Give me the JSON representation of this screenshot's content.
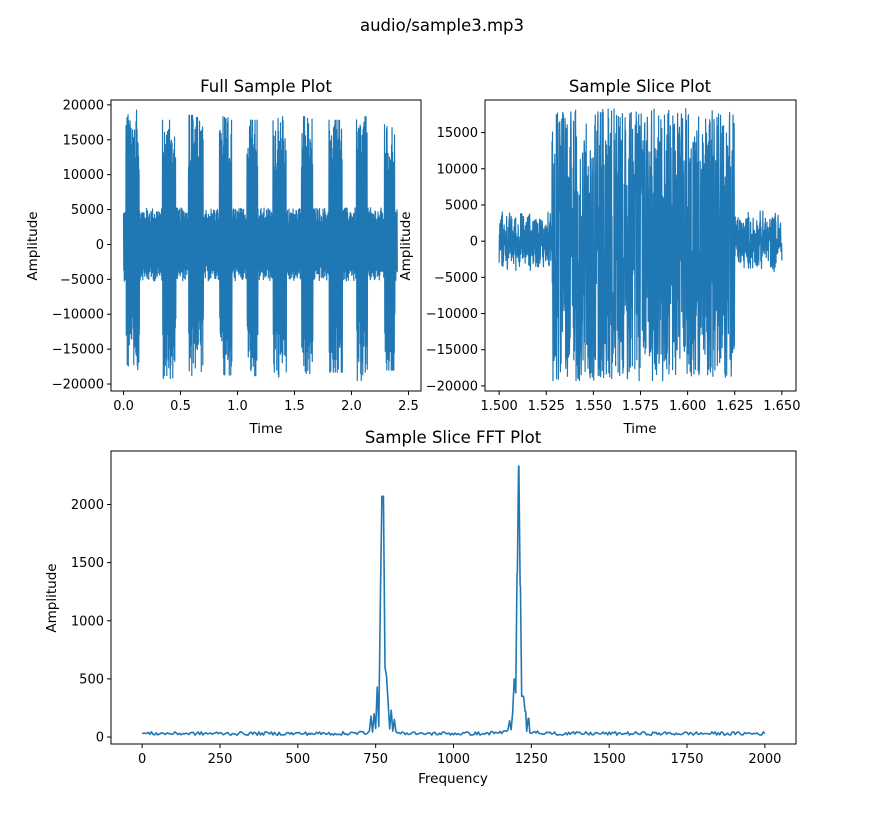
{
  "figure": {
    "suptitle": "audio/sample3.mp3",
    "line_color": "#1f77b4"
  },
  "chart_data": [
    {
      "id": "full",
      "type": "line",
      "title": "Full Sample Plot",
      "xlabel": "Time",
      "ylabel": "Amplitude",
      "xlim": [
        -0.11,
        2.61
      ],
      "ylim": [
        -21000,
        20700
      ],
      "xticks": [
        0.0,
        0.5,
        1.0,
        1.5,
        2.0,
        2.5
      ],
      "xtick_labels": [
        "0.0",
        "0.5",
        "1.0",
        "1.5",
        "2.0",
        "2.5"
      ],
      "yticks": [
        -20000,
        -15000,
        -10000,
        -5000,
        0,
        5000,
        10000,
        15000,
        20000
      ],
      "ytick_labels": [
        "−20000",
        "−15000",
        "−10000",
        "−5000",
        "0",
        "5000",
        "10000",
        "15000",
        "20000"
      ],
      "signal": {
        "x_range": [
          0.0,
          2.4
        ],
        "baseline_amplitude": 5000,
        "bursts": [
          {
            "start": 0.02,
            "end": 0.14,
            "max": 19300,
            "min": -18500
          },
          {
            "start": 0.34,
            "end": 0.46,
            "max": 17800,
            "min": -19200
          },
          {
            "start": 0.57,
            "end": 0.7,
            "max": 18500,
            "min": -18800
          },
          {
            "start": 0.84,
            "end": 0.95,
            "max": 18300,
            "min": -18700
          },
          {
            "start": 1.08,
            "end": 1.18,
            "max": 17800,
            "min": -18800
          },
          {
            "start": 1.31,
            "end": 1.43,
            "max": 18300,
            "min": -19000
          },
          {
            "start": 1.56,
            "end": 1.66,
            "max": 18300,
            "min": -18500
          },
          {
            "start": 1.8,
            "end": 1.92,
            "max": 17800,
            "min": -18300
          },
          {
            "start": 2.04,
            "end": 2.14,
            "max": 18300,
            "min": -19500
          },
          {
            "start": 2.29,
            "end": 2.38,
            "max": 17500,
            "min": -18000
          }
        ]
      }
    },
    {
      "id": "slice",
      "type": "line",
      "title": "Sample Slice Plot",
      "xlabel": "Time",
      "ylabel": "Amplitude",
      "xlim": [
        1.4925,
        1.6575
      ],
      "ylim": [
        -20700,
        19500
      ],
      "xticks": [
        1.5,
        1.525,
        1.55,
        1.575,
        1.6,
        1.625,
        1.65
      ],
      "xtick_labels": [
        "1.500",
        "1.525",
        "1.550",
        "1.575",
        "1.600",
        "1.625",
        "1.650"
      ],
      "yticks": [
        -20000,
        -15000,
        -10000,
        -5000,
        0,
        5000,
        10000,
        15000
      ],
      "ytick_labels": [
        "−20000",
        "−15000",
        "−10000",
        "−5000",
        "0",
        "5000",
        "10000",
        "15000"
      ],
      "signal": {
        "x_range": [
          1.5,
          1.65
        ],
        "baseline_amplitude": 4500,
        "burst": {
          "start": 1.528,
          "end": 1.625,
          "max": 18300,
          "min": -19300
        }
      }
    },
    {
      "id": "fft",
      "type": "line",
      "title": "Sample Slice FFT Plot",
      "xlabel": "Frequency",
      "ylabel": "Amplitude",
      "xlim": [
        -100,
        2100
      ],
      "ylim": [
        -60,
        2460
      ],
      "xticks": [
        0,
        250,
        500,
        750,
        1000,
        1250,
        1500,
        1750,
        2000
      ],
      "xtick_labels": [
        "0",
        "250",
        "500",
        "750",
        "1000",
        "1250",
        "1500",
        "1750",
        "2000"
      ],
      "yticks": [
        0,
        500,
        1000,
        1500,
        2000
      ],
      "ytick_labels": [
        "0",
        "500",
        "1000",
        "1500",
        "2000"
      ],
      "signal": {
        "x_range": [
          0,
          2000
        ],
        "noise_level": 30,
        "peaks": [
          {
            "freq": 770,
            "amp": 2070
          },
          {
            "freq": 1209,
            "amp": 2330
          }
        ],
        "side_values": [
          {
            "freq": 735,
            "amp": 180
          },
          {
            "freq": 745,
            "amp": 200
          },
          {
            "freq": 755,
            "amp": 430
          },
          {
            "freq": 765,
            "amp": 1150
          },
          {
            "freq": 770,
            "amp": 2070
          },
          {
            "freq": 775,
            "amp": 2070
          },
          {
            "freq": 780,
            "amp": 600
          },
          {
            "freq": 785,
            "amp": 520
          },
          {
            "freq": 790,
            "amp": 300
          },
          {
            "freq": 800,
            "amp": 230
          },
          {
            "freq": 810,
            "amp": 150
          },
          {
            "freq": 1180,
            "amp": 140
          },
          {
            "freq": 1190,
            "amp": 210
          },
          {
            "freq": 1195,
            "amp": 500
          },
          {
            "freq": 1200,
            "amp": 380
          },
          {
            "freq": 1204,
            "amp": 1400
          },
          {
            "freq": 1209,
            "amp": 2330
          },
          {
            "freq": 1214,
            "amp": 1300
          },
          {
            "freq": 1219,
            "amp": 350
          },
          {
            "freq": 1224,
            "amp": 350
          },
          {
            "freq": 1232,
            "amp": 220
          },
          {
            "freq": 1242,
            "amp": 160
          }
        ]
      }
    }
  ]
}
